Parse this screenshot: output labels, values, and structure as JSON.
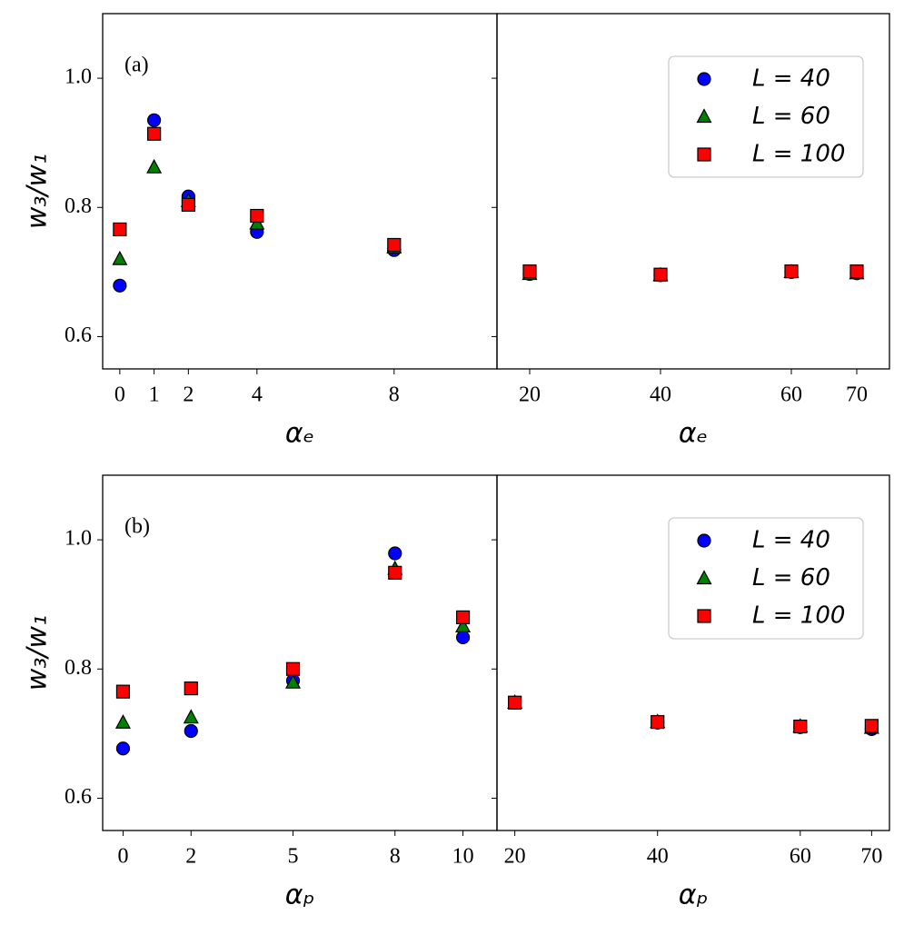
{
  "chart_data": [
    {
      "type": "scatter",
      "annotation": "(a)",
      "ylabel": "w₃/w₁",
      "xlabel": "αₑ",
      "x": [
        0,
        1,
        2,
        4,
        8
      ],
      "xlim": [
        -0.5,
        11
      ],
      "xticks": [
        0,
        1,
        2,
        4,
        8
      ],
      "ylim": [
        0.55,
        1.1
      ],
      "yticks": [
        0.6,
        0.8,
        1.0
      ],
      "series": [
        {
          "name": "L = 40",
          "color": "#0000ff",
          "marker": "circle",
          "values": [
            0.679,
            0.935,
            0.817,
            0.762,
            0.734
          ]
        },
        {
          "name": "L = 60",
          "color": "#008000",
          "marker": "triangle",
          "values": [
            0.72,
            0.862,
            0.81,
            0.775,
            0.738
          ]
        },
        {
          "name": "L = 100",
          "color": "#ff0000",
          "marker": "square",
          "values": [
            0.766,
            0.914,
            0.804,
            0.787,
            0.742
          ]
        }
      ]
    },
    {
      "type": "scatter",
      "xlabel": "αₑ",
      "legend": "upper right",
      "x": [
        20,
        40,
        60,
        70
      ],
      "xlim": [
        15,
        75
      ],
      "xticks": [
        20,
        40,
        60,
        70
      ],
      "ylim": [
        0.55,
        1.1
      ],
      "series": [
        {
          "name": "L = 40",
          "color": "#0000ff",
          "marker": "circle",
          "values": [
            0.697,
            0.695,
            0.7,
            0.698
          ]
        },
        {
          "name": "L = 60",
          "color": "#008000",
          "marker": "triangle",
          "values": [
            0.697,
            0.695,
            0.7,
            0.698
          ]
        },
        {
          "name": "L = 100",
          "color": "#ff0000",
          "marker": "square",
          "values": [
            0.701,
            0.696,
            0.701,
            0.701
          ]
        }
      ]
    },
    {
      "type": "scatter",
      "annotation": "(b)",
      "ylabel": "w₃/w₁",
      "xlabel": "αₚ",
      "x": [
        0,
        2,
        5,
        8,
        10
      ],
      "xlim": [
        -0.6,
        11
      ],
      "xticks": [
        0,
        2,
        5,
        8,
        10
      ],
      "ylim": [
        0.55,
        1.1
      ],
      "yticks": [
        0.6,
        0.8,
        1.0
      ],
      "series": [
        {
          "name": "L = 40",
          "color": "#0000ff",
          "marker": "circle",
          "values": [
            0.677,
            0.704,
            0.782,
            0.979,
            0.849
          ]
        },
        {
          "name": "L = 60",
          "color": "#008000",
          "marker": "triangle",
          "values": [
            0.717,
            0.725,
            0.779,
            0.955,
            0.866
          ]
        },
        {
          "name": "L = 100",
          "color": "#ff0000",
          "marker": "square",
          "values": [
            0.765,
            0.77,
            0.8,
            0.949,
            0.88
          ]
        }
      ]
    },
    {
      "type": "scatter",
      "xlabel": "αₚ",
      "legend": "upper right",
      "x": [
        20,
        40,
        60,
        70
      ],
      "xlim": [
        17.5,
        72.5
      ],
      "xticks": [
        20,
        40,
        60,
        70
      ],
      "ylim": [
        0.55,
        1.1
      ],
      "series": [
        {
          "name": "L = 40",
          "color": "#0000ff",
          "marker": "circle",
          "values": [
            0.748,
            0.717,
            0.71,
            0.707
          ]
        },
        {
          "name": "L = 60",
          "color": "#008000",
          "marker": "triangle",
          "values": [
            0.748,
            0.718,
            0.711,
            0.709
          ]
        },
        {
          "name": "L = 100",
          "color": "#ff0000",
          "marker": "square",
          "values": [
            0.748,
            0.718,
            0.711,
            0.712
          ]
        }
      ]
    }
  ]
}
